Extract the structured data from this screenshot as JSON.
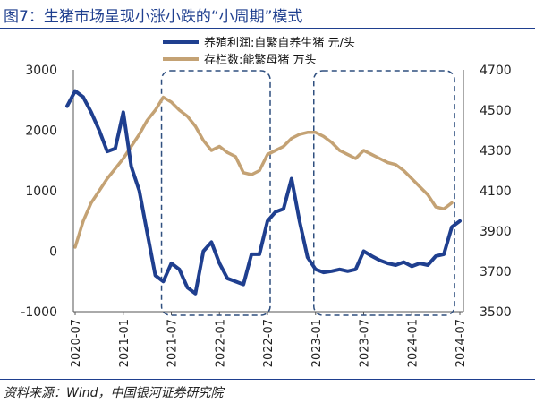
{
  "figure": {
    "title": "图7：生猪市场呈现小涨小跌的“小周期”模式",
    "source": "资料来源：Wind，中国银河证券研究院"
  },
  "chart_data": {
    "type": "line",
    "x_ticks": [
      "2020-07",
      "2021-01",
      "2021-07",
      "2022-01",
      "2022-07",
      "2023-01",
      "2023-07",
      "2024-01",
      "2024-07"
    ],
    "left_axis": {
      "ticks": [
        "3000",
        "2000",
        "1000",
        "0",
        "-1000"
      ],
      "ylim": [
        -1000,
        3000
      ]
    },
    "right_axis": {
      "ticks": [
        "4700",
        "4500",
        "4300",
        "4100",
        "3900",
        "3700",
        "3500"
      ],
      "ylim": [
        3500,
        4700
      ]
    },
    "grid": false,
    "legend_position": "top-center",
    "highlight_boxes": [
      {
        "from": "2021-06",
        "to": "2022-07",
        "style": "dashed"
      },
      {
        "from": "2023-01",
        "to": "2024-06",
        "style": "dashed"
      }
    ],
    "series": [
      {
        "name": "养殖利润:自繁自养生猪 元/头",
        "axis": "left",
        "color": "#1f3f8f",
        "x": [
          "2020-06",
          "2020-07",
          "2020-08",
          "2020-09",
          "2020-10",
          "2020-11",
          "2020-12",
          "2021-01",
          "2021-02",
          "2021-03",
          "2021-04",
          "2021-05",
          "2021-06",
          "2021-07",
          "2021-08",
          "2021-09",
          "2021-10",
          "2021-11",
          "2021-12",
          "2022-01",
          "2022-02",
          "2022-03",
          "2022-04",
          "2022-05",
          "2022-06",
          "2022-07",
          "2022-08",
          "2022-09",
          "2022-10",
          "2022-11",
          "2022-12",
          "2023-01",
          "2023-02",
          "2023-03",
          "2023-04",
          "2023-05",
          "2023-06",
          "2023-07",
          "2023-08",
          "2023-09",
          "2023-10",
          "2023-11",
          "2023-12",
          "2024-01",
          "2024-02",
          "2024-03",
          "2024-04",
          "2024-05",
          "2024-06",
          "2024-07"
        ],
        "values": [
          2400,
          2650,
          2550,
          2300,
          2000,
          1650,
          1700,
          2300,
          1400,
          1000,
          300,
          -400,
          -500,
          -200,
          -300,
          -600,
          -700,
          0,
          150,
          -200,
          -450,
          -500,
          -550,
          -50,
          -50,
          500,
          650,
          700,
          1200,
          500,
          -100,
          -300,
          -350,
          -330,
          -300,
          -330,
          -300,
          0,
          -80,
          -150,
          -200,
          -230,
          -180,
          -250,
          -200,
          -230,
          -80,
          -50,
          400,
          500
        ]
      },
      {
        "name": "存栏数:能繁母猪 万头",
        "axis": "right",
        "color": "#c4a274",
        "x": [
          "2020-07",
          "2020-08",
          "2020-09",
          "2020-10",
          "2020-11",
          "2020-12",
          "2021-01",
          "2021-02",
          "2021-03",
          "2021-04",
          "2021-05",
          "2021-06",
          "2021-07",
          "2021-08",
          "2021-09",
          "2021-10",
          "2021-11",
          "2021-12",
          "2022-01",
          "2022-02",
          "2022-03",
          "2022-04",
          "2022-05",
          "2022-06",
          "2022-07",
          "2022-08",
          "2022-09",
          "2022-10",
          "2022-11",
          "2022-12",
          "2023-01",
          "2023-02",
          "2023-03",
          "2023-04",
          "2023-05",
          "2023-06",
          "2023-07",
          "2023-08",
          "2023-09",
          "2023-10",
          "2023-11",
          "2023-12",
          "2024-01",
          "2024-02",
          "2024-03",
          "2024-04",
          "2024-05",
          "2024-06"
        ],
        "values": [
          3820,
          3950,
          4040,
          4100,
          4160,
          4210,
          4260,
          4320,
          4380,
          4450,
          4500,
          4564,
          4540,
          4500,
          4470,
          4420,
          4350,
          4300,
          4320,
          4290,
          4270,
          4190,
          4180,
          4200,
          4280,
          4300,
          4320,
          4360,
          4380,
          4390,
          4390,
          4370,
          4340,
          4300,
          4280,
          4260,
          4300,
          4280,
          4260,
          4240,
          4230,
          4200,
          4160,
          4120,
          4080,
          4020,
          4010,
          4040
        ]
      }
    ]
  }
}
